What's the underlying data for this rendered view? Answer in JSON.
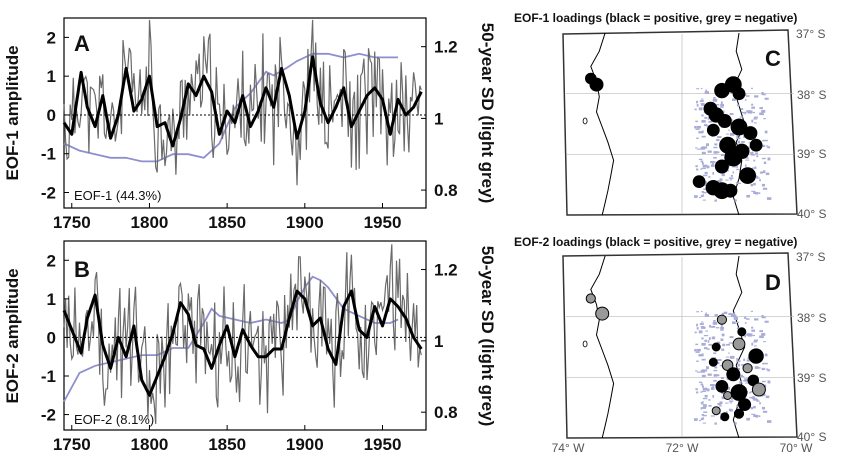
{
  "chart_data": [
    {
      "type": "line",
      "panel": "A",
      "ylabel": "EOF-1 amplitude",
      "y2label": "50-year SD (light grey)",
      "annotation": "EOF-1 (44.3%)",
      "xlim": [
        1745,
        1978
      ],
      "ylim": [
        -2.4,
        2.5
      ],
      "y2lim": [
        0.75,
        1.28
      ],
      "xticks": [
        "1750",
        "1800",
        "1850",
        "1900",
        "1950"
      ],
      "yticks": [
        "2",
        "1",
        "0",
        "-1",
        "-2"
      ],
      "y2ticks": [
        "1.2",
        "1",
        "0.8"
      ],
      "series": [
        {
          "role": "annual",
          "color": "#6a6a6a",
          "x": [
            1745,
            1975
          ],
          "seed": 11
        },
        {
          "role": "smoothed",
          "color": "#000000",
          "x": [
            1745,
            1750,
            1756,
            1760,
            1765,
            1770,
            1775,
            1780,
            1785,
            1790,
            1795,
            1800,
            1805,
            1810,
            1815,
            1820,
            1825,
            1830,
            1835,
            1840,
            1845,
            1850,
            1855,
            1860,
            1865,
            1870,
            1875,
            1880,
            1885,
            1890,
            1895,
            1900,
            1905,
            1910,
            1915,
            1920,
            1925,
            1930,
            1935,
            1940,
            1945,
            1950,
            1955,
            1960,
            1965,
            1970,
            1975
          ],
          "y": [
            -0.2,
            -0.5,
            1.1,
            0.2,
            -0.3,
            0.5,
            -0.6,
            0.0,
            1.2,
            0.1,
            0.4,
            1.0,
            -0.3,
            -0.2,
            -0.8,
            -0.1,
            0.8,
            0.5,
            1.0,
            0.6,
            -0.5,
            0.1,
            -0.2,
            0.5,
            -0.3,
            0.1,
            0.7,
            0.2,
            1.2,
            0.5,
            -0.6,
            0.1,
            1.5,
            0.3,
            -0.2,
            0.2,
            0.7,
            -0.3,
            0.1,
            0.5,
            0.7,
            0.4,
            -0.5,
            0.4,
            0.0,
            0.2,
            0.6
          ]
        },
        {
          "role": "sd",
          "color": "#8e8ed0",
          "axis": "right",
          "x": [
            1745,
            1755,
            1765,
            1775,
            1785,
            1795,
            1805,
            1815,
            1825,
            1835,
            1845,
            1855,
            1865,
            1875,
            1880,
            1888,
            1895,
            1900,
            1905,
            1915,
            1925,
            1935,
            1945,
            1950,
            1955,
            1960
          ],
          "y": [
            0.93,
            0.91,
            0.9,
            0.89,
            0.89,
            0.88,
            0.88,
            0.9,
            0.9,
            0.89,
            0.93,
            1.03,
            1.07,
            1.13,
            1.12,
            1.14,
            1.16,
            1.17,
            1.18,
            1.18,
            1.17,
            1.18,
            1.17,
            1.17,
            1.17,
            1.17
          ]
        }
      ]
    },
    {
      "type": "line",
      "panel": "B",
      "ylabel": "EOF-2 amplitude",
      "y2label": "50-year SD (light grey)",
      "annotation": "EOF-2 (8.1%)",
      "xlim": [
        1745,
        1978
      ],
      "ylim": [
        -2.4,
        2.5
      ],
      "y2lim": [
        0.75,
        1.28
      ],
      "xticks": [
        "1750",
        "1800",
        "1850",
        "1900",
        "1950"
      ],
      "yticks": [
        "2",
        "1",
        "0",
        "-1",
        "-2"
      ],
      "y2ticks": [
        "1.2",
        "1",
        "0.8"
      ],
      "series": [
        {
          "role": "annual",
          "color": "#6a6a6a",
          "x": [
            1745,
            1975
          ],
          "seed": 29
        },
        {
          "role": "smoothed",
          "color": "#000000",
          "x": [
            1745,
            1750,
            1756,
            1760,
            1765,
            1770,
            1775,
            1780,
            1785,
            1790,
            1795,
            1800,
            1805,
            1810,
            1815,
            1820,
            1825,
            1830,
            1835,
            1840,
            1845,
            1850,
            1855,
            1860,
            1865,
            1870,
            1875,
            1880,
            1885,
            1890,
            1895,
            1900,
            1905,
            1910,
            1915,
            1920,
            1925,
            1930,
            1935,
            1940,
            1945,
            1950,
            1955,
            1960,
            1965,
            1970,
            1975
          ],
          "y": [
            0.7,
            0.2,
            -0.4,
            0.5,
            1.1,
            -0.2,
            -0.8,
            0.0,
            -0.5,
            0.3,
            -1.1,
            -1.5,
            -1.0,
            -0.5,
            0.1,
            0.9,
            0.6,
            -0.2,
            -0.3,
            -0.8,
            -0.2,
            0.3,
            -0.5,
            0.2,
            -0.2,
            -0.5,
            -0.5,
            -0.3,
            -0.3,
            0.5,
            1.2,
            1.0,
            0.3,
            0.5,
            -0.3,
            -0.7,
            0.8,
            1.2,
            0.2,
            0.0,
            0.8,
            0.3,
            1.0,
            0.8,
            0.5,
            0.0,
            -0.3
          ]
        },
        {
          "role": "sd",
          "color": "#8e8ed0",
          "axis": "right",
          "x": [
            1745,
            1755,
            1765,
            1775,
            1785,
            1795,
            1805,
            1815,
            1825,
            1835,
            1840,
            1845,
            1855,
            1865,
            1875,
            1885,
            1890,
            1895,
            1900,
            1905,
            1910,
            1915,
            1925,
            1935,
            1945,
            1955,
            1960
          ],
          "y": [
            0.83,
            0.91,
            0.93,
            0.94,
            0.95,
            0.96,
            0.96,
            0.98,
            0.98,
            1.05,
            1.09,
            1.07,
            1.06,
            1.05,
            1.06,
            1.05,
            1.06,
            1.11,
            1.15,
            1.18,
            1.17,
            1.15,
            1.09,
            1.07,
            1.05,
            1.05,
            1.06
          ]
        }
      ]
    }
  ],
  "maps": [
    {
      "title": "EOF-1 loadings (black = positive, grey = negative)",
      "label": "C",
      "lat_labels": [
        "37° S",
        "38° S",
        "39° S",
        "40° S"
      ],
      "site_sign": "positive",
      "sites": [
        {
          "lon": -73.6,
          "lat": -37.75,
          "size": 0.5,
          "sign": "pos"
        },
        {
          "lon": -73.5,
          "lat": -37.85,
          "size": 0.7,
          "sign": "pos"
        },
        {
          "lon": -71.3,
          "lat": -37.95,
          "size": 0.8,
          "sign": "pos"
        },
        {
          "lon": -71.1,
          "lat": -37.85,
          "size": 0.9,
          "sign": "pos"
        },
        {
          "lon": -71.0,
          "lat": -38.0,
          "size": 0.6,
          "sign": "pos"
        },
        {
          "lon": -71.5,
          "lat": -38.25,
          "size": 0.7,
          "sign": "pos"
        },
        {
          "lon": -71.4,
          "lat": -38.35,
          "size": 0.8,
          "sign": "pos"
        },
        {
          "lon": -71.25,
          "lat": -38.45,
          "size": 0.7,
          "sign": "pos"
        },
        {
          "lon": -71.0,
          "lat": -38.55,
          "size": 0.9,
          "sign": "pos"
        },
        {
          "lon": -71.45,
          "lat": -38.6,
          "size": 0.6,
          "sign": "pos"
        },
        {
          "lon": -70.8,
          "lat": -38.65,
          "size": 0.7,
          "sign": "pos"
        },
        {
          "lon": -71.2,
          "lat": -38.85,
          "size": 0.9,
          "sign": "pos"
        },
        {
          "lon": -70.95,
          "lat": -38.95,
          "size": 0.8,
          "sign": "pos"
        },
        {
          "lon": -71.1,
          "lat": -39.05,
          "size": 1.0,
          "sign": "pos"
        },
        {
          "lon": -70.7,
          "lat": -38.85,
          "size": 0.6,
          "sign": "pos"
        },
        {
          "lon": -71.3,
          "lat": -39.2,
          "size": 0.7,
          "sign": "pos"
        },
        {
          "lon": -70.85,
          "lat": -39.35,
          "size": 0.9,
          "sign": "pos"
        },
        {
          "lon": -71.7,
          "lat": -39.45,
          "size": 0.6,
          "sign": "pos"
        },
        {
          "lon": -71.45,
          "lat": -39.55,
          "size": 0.8,
          "sign": "pos"
        },
        {
          "lon": -71.3,
          "lat": -39.6,
          "size": 0.9,
          "sign": "pos"
        },
        {
          "lon": -71.15,
          "lat": -39.6,
          "size": 0.7,
          "sign": "pos"
        }
      ]
    },
    {
      "title": "EOF-2 loadings (black = positive, grey = negative)",
      "label": "D",
      "lat_labels": [
        "37° S",
        "38° S",
        "39° S",
        "40° S"
      ],
      "lon_labels": [
        "74° W",
        "72° W",
        "70° W"
      ],
      "sites": [
        {
          "lon": -73.6,
          "lat": -37.7,
          "size": 0.4,
          "sign": "neg"
        },
        {
          "lon": -73.4,
          "lat": -37.95,
          "size": 0.7,
          "sign": "neg"
        },
        {
          "lon": -71.3,
          "lat": -38.05,
          "size": 0.4,
          "sign": "neg"
        },
        {
          "lon": -70.95,
          "lat": -38.25,
          "size": 0.3,
          "sign": "pos"
        },
        {
          "lon": -71.0,
          "lat": -38.45,
          "size": 0.6,
          "sign": "neg"
        },
        {
          "lon": -71.4,
          "lat": -38.5,
          "size": 0.3,
          "sign": "pos"
        },
        {
          "lon": -70.7,
          "lat": -38.65,
          "size": 0.8,
          "sign": "pos"
        },
        {
          "lon": -71.45,
          "lat": -38.75,
          "size": 0.3,
          "sign": "pos"
        },
        {
          "lon": -71.2,
          "lat": -38.8,
          "size": 0.5,
          "sign": "neg"
        },
        {
          "lon": -70.85,
          "lat": -38.85,
          "size": 0.4,
          "sign": "neg"
        },
        {
          "lon": -71.1,
          "lat": -38.95,
          "size": 0.7,
          "sign": "pos"
        },
        {
          "lon": -70.75,
          "lat": -39.05,
          "size": 0.5,
          "sign": "pos"
        },
        {
          "lon": -71.3,
          "lat": -39.15,
          "size": 0.6,
          "sign": "pos"
        },
        {
          "lon": -70.65,
          "lat": -39.2,
          "size": 0.7,
          "sign": "neg"
        },
        {
          "lon": -71.0,
          "lat": -39.25,
          "size": 0.9,
          "sign": "pos"
        },
        {
          "lon": -71.2,
          "lat": -39.3,
          "size": 0.3,
          "sign": "neg"
        },
        {
          "lon": -70.9,
          "lat": -39.45,
          "size": 0.6,
          "sign": "pos"
        },
        {
          "lon": -71.4,
          "lat": -39.55,
          "size": 0.3,
          "sign": "neg"
        },
        {
          "lon": -71.0,
          "lat": -39.6,
          "size": 0.4,
          "sign": "pos"
        },
        {
          "lon": -71.25,
          "lat": -39.65,
          "size": 0.3,
          "sign": "pos"
        }
      ]
    }
  ],
  "colors": {
    "annual": "#6a6a6a",
    "smooth": "#000000",
    "sd": "#8e8ed0",
    "positive": "#000000",
    "negative": "#999999",
    "lake": "#a9acd8"
  }
}
